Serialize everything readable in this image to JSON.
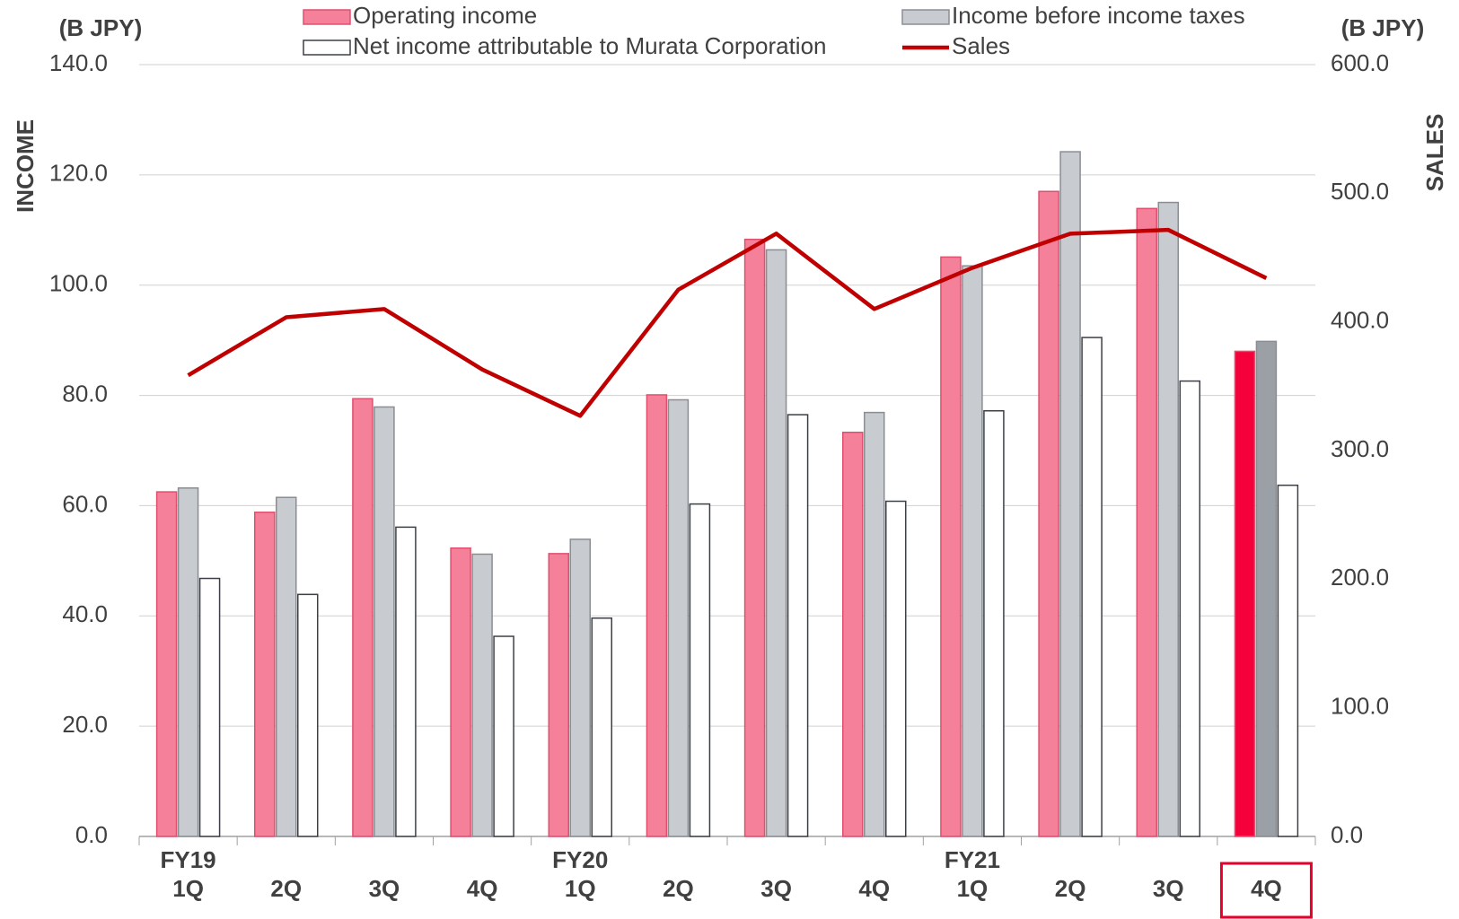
{
  "chart_data": {
    "type": "bar",
    "categories": [
      "FY19\n1Q",
      "2Q",
      "3Q",
      "4Q",
      "FY20\n1Q",
      "2Q",
      "3Q",
      "4Q",
      "FY21\n1Q",
      "2Q",
      "3Q",
      "4Q"
    ],
    "highlight_index": 11,
    "y_axis_title": "INCOME",
    "y_unit": "(B JPY)",
    "y2_axis_title": "SALES",
    "y2_unit": "(B JPY)",
    "ylim": [
      0,
      140
    ],
    "yticks": [
      {
        "value": 0,
        "label": "0.0"
      },
      {
        "value": 20,
        "label": "20.0"
      },
      {
        "value": 40,
        "label": "40.0"
      },
      {
        "value": 60,
        "label": "60.0"
      },
      {
        "value": 80,
        "label": "80.0"
      },
      {
        "value": 100,
        "label": "100.0"
      },
      {
        "value": 120,
        "label": "120.0"
      },
      {
        "value": 140,
        "label": "140.0"
      }
    ],
    "y2lim": [
      0,
      600
    ],
    "y2ticks": [
      {
        "value": 0,
        "label": "0.0"
      },
      {
        "value": 100,
        "label": "100.0"
      },
      {
        "value": 200,
        "label": "200.0"
      },
      {
        "value": 300,
        "label": "300.0"
      },
      {
        "value": 400,
        "label": "400.0"
      },
      {
        "value": 500,
        "label": "500.0"
      },
      {
        "value": 600,
        "label": "600.0"
      }
    ],
    "grid": true,
    "series": [
      {
        "name": "Operating income",
        "type": "bar",
        "color": "#f4809a",
        "stroke": "#e0506e",
        "highlight_color": "#f5003a",
        "values": [
          62.5,
          58.8,
          79.4,
          52.3,
          51.3,
          80.1,
          108.3,
          73.3,
          105.1,
          117.0,
          113.9,
          88.0
        ]
      },
      {
        "name": "Income before income taxes",
        "type": "bar",
        "color": "#c8cbcf",
        "stroke": "#8a8e93",
        "highlight_color": "#9aa0a6",
        "values": [
          63.2,
          61.5,
          77.9,
          51.2,
          53.9,
          79.2,
          106.4,
          76.9,
          103.5,
          124.2,
          115.0,
          89.8
        ]
      },
      {
        "name": "Net income attributable to Murata Corporation",
        "type": "bar",
        "color": "#ffffff",
        "stroke": "#3c4046",
        "highlight_color": "#ffffff",
        "values": [
          46.8,
          43.9,
          56.1,
          36.3,
          39.6,
          60.3,
          76.5,
          60.8,
          77.2,
          90.5,
          82.6,
          63.7
        ]
      },
      {
        "name": "Sales",
        "type": "line",
        "axis": "y2",
        "color": "#c00000",
        "values": [
          358.5,
          403.6,
          410.0,
          363.0,
          327.0,
          425.0,
          468.6,
          410.0,
          442.0,
          468.6,
          471.5,
          434.0
        ]
      }
    ]
  }
}
